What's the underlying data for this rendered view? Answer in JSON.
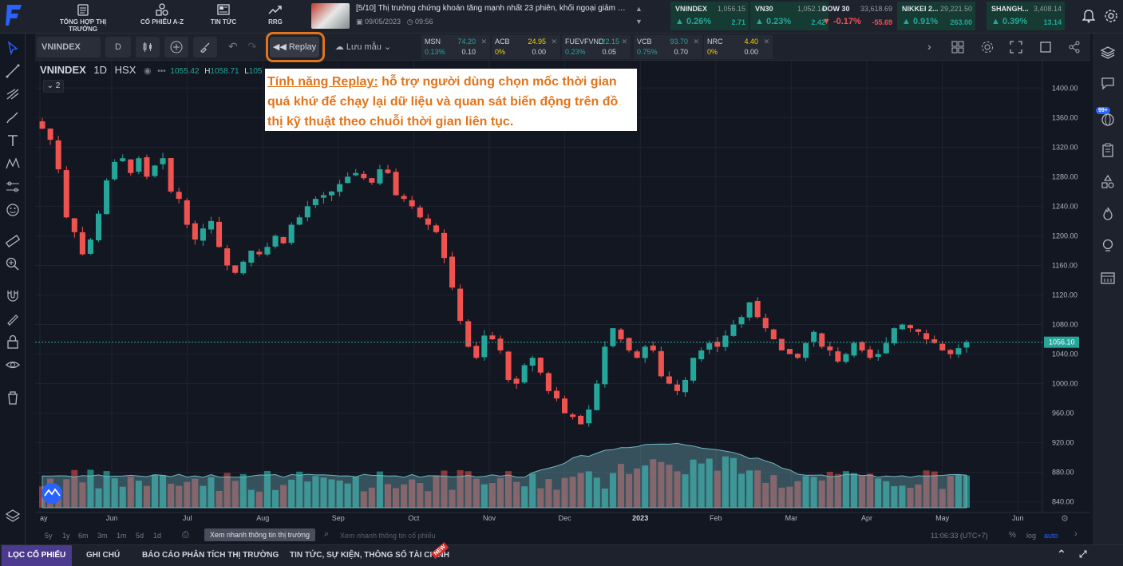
{
  "topnav": [
    {
      "label": "TỔNG HỢP THỊ TRƯỜNG",
      "icon": "calendar-icon"
    },
    {
      "label": "CỔ PHIẾU A-Z",
      "icon": "shapes-icon"
    },
    {
      "label": "TIN TỨC",
      "icon": "news-icon"
    },
    {
      "label": "RRG",
      "icon": "trend-icon"
    }
  ],
  "news": {
    "title": "[5/10]  Thị trường chứng khoán tăng mạnh nhất 23 phiên, khối ngoại giảm b...",
    "date": "09/05/2023",
    "time": "09:56"
  },
  "tickers": [
    {
      "name": "VNINDEX",
      "value": "1,056.15",
      "pct": "0.26%",
      "chg": "2.71",
      "dir": "up"
    },
    {
      "name": "VN30",
      "value": "1,052.14",
      "pct": "0.23%",
      "chg": "2.42",
      "dir": "up"
    },
    {
      "name": "DOW 30",
      "value": "33,618.69",
      "pct": "-0.17%",
      "chg": "-55.69",
      "dir": "down"
    },
    {
      "name": "NIKKEI 2...",
      "value": "29,221.50",
      "pct": "0.91%",
      "chg": "263.00",
      "dir": "up"
    },
    {
      "name": "SHANGH...",
      "value": "3,408.14",
      "pct": "0.39%",
      "chg": "13.14",
      "dir": "up"
    }
  ],
  "toolbar": {
    "symbol": "VNINDEX",
    "interval": "D",
    "replay": "Replay",
    "save_layout": "Lưu mẫu"
  },
  "quotes": [
    {
      "name": "MSN",
      "value": "74.20",
      "pct": "0.13%",
      "chg": "0.10",
      "dir": "up"
    },
    {
      "name": "ACB",
      "value": "24.95",
      "pct": "0%",
      "chg": "0.00",
      "dir": "flat"
    },
    {
      "name": "FUEVFVND",
      "value": "22.15",
      "pct": "0.23%",
      "chg": "0.05",
      "dir": "up"
    },
    {
      "name": "VCB",
      "value": "93.70",
      "pct": "0.75%",
      "chg": "0.70",
      "dir": "up"
    },
    {
      "name": "NRC",
      "value": "4.40",
      "pct": "0%",
      "chg": "0.00",
      "dir": "flat"
    }
  ],
  "legend": {
    "symbol": "VNINDEX",
    "interval": "1D",
    "exchange": "HSX",
    "open": "1055.42",
    "high_label": "H",
    "high": "1058.71",
    "low_label": "L",
    "low": "105",
    "collapse": "2"
  },
  "annotation": {
    "highlight": "Tính năng Replay:",
    "text": " hỗ trợ người dùng chọn mốc thời gian quá khứ để chạy lại dữ liệu và quan sát biến động trên đồ thị kỹ thuật theo chuỗi thời gian liên tục."
  },
  "chart_data": {
    "type": "candlestick",
    "symbol": "VNINDEX",
    "interval": "1D",
    "ylim": [
      830,
      1410
    ],
    "y_ticks": [
      "1400.00",
      "1360.00",
      "1320.00",
      "1280.00",
      "1240.00",
      "1200.00",
      "1160.00",
      "1120.00",
      "1080.00",
      "1040.00",
      "1000.00",
      "960.00",
      "920.00",
      "880.00",
      "840.00"
    ],
    "x_ticks": [
      "ay",
      "Jun",
      "Jul",
      "Aug",
      "Sep",
      "Oct",
      "Nov",
      "Dec",
      "2023",
      "Feb",
      "Mar",
      "Apr",
      "May",
      "Jun"
    ],
    "last_price": "1056.10",
    "close_series": [
      1345,
      1330,
      1290,
      1225,
      1205,
      1175,
      1195,
      1230,
      1275,
      1300,
      1305,
      1285,
      1305,
      1280,
      1295,
      1305,
      1260,
      1250,
      1215,
      1195,
      1210,
      1220,
      1185,
      1160,
      1150,
      1165,
      1180,
      1175,
      1185,
      1200,
      1190,
      1215,
      1225,
      1240,
      1250,
      1255,
      1260,
      1270,
      1280,
      1285,
      1278,
      1272,
      1290,
      1285,
      1255,
      1250,
      1240,
      1225,
      1215,
      1205,
      1170,
      1130,
      1085,
      1050,
      1035,
      1065,
      1060,
      1045,
      1005,
      1000,
      1025,
      1035,
      1015,
      990,
      980,
      960,
      955,
      945,
      965,
      1000,
      1050,
      1075,
      1060,
      1045,
      1035,
      1050,
      1045,
      1010,
      1000,
      990,
      1005,
      1035,
      1045,
      1055,
      1050,
      1065,
      1080,
      1090,
      1110,
      1090,
      1075,
      1060,
      1045,
      1040,
      1035,
      1055,
      1070,
      1050,
      1045,
      1030,
      1040,
      1055,
      1045,
      1035,
      1040,
      1055,
      1075,
      1080,
      1075,
      1070,
      1060,
      1055,
      1045,
      1040,
      1048,
      1056
    ],
    "volume_area_note": "rendered as volume bars and moving average",
    "volume_ylim": [
      0,
      100
    ]
  },
  "bottom": {
    "ranges": [
      "5y",
      "1y",
      "6m",
      "3m",
      "1m",
      "5d",
      "1d"
    ],
    "market_view_btn": "Xem nhanh thông tin thị trường",
    "stock_search_placeholder": "Xem nhanh thông tin cổ phiếu",
    "clock": "11:06:33 (UTC+7)",
    "pct": "%",
    "log": "log",
    "auto": "auto"
  },
  "footer_tabs": [
    "LỌC CỔ PHIẾU",
    "GHI CHÚ",
    "BÁO CÁO PHÂN TÍCH THỊ TRƯỜNG",
    "TIN TỨC, SỰ KIỆN, THÔNG SỐ TÀI CHÍNH"
  ],
  "footer_badge": "NEW",
  "right_badge": "99+",
  "colors": {
    "up": "#26a69a",
    "down": "#ef5350",
    "accent": "#e3741a",
    "bg": "#131722"
  }
}
